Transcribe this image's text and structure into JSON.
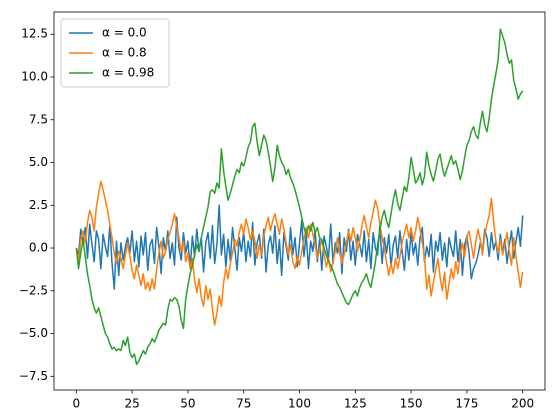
{
  "chart_data": {
    "type": "line",
    "x": [
      0,
      1,
      2,
      3,
      4,
      5,
      6,
      7,
      8,
      9,
      10,
      11,
      12,
      13,
      14,
      15,
      16,
      17,
      18,
      19,
      20,
      21,
      22,
      23,
      24,
      25,
      26,
      27,
      28,
      29,
      30,
      31,
      32,
      33,
      34,
      35,
      36,
      37,
      38,
      39,
      40,
      41,
      42,
      43,
      44,
      45,
      46,
      47,
      48,
      49,
      50,
      51,
      52,
      53,
      54,
      55,
      56,
      57,
      58,
      59,
      60,
      61,
      62,
      63,
      64,
      65,
      66,
      67,
      68,
      69,
      70,
      71,
      72,
      73,
      74,
      75,
      76,
      77,
      78,
      79,
      80,
      81,
      82,
      83,
      84,
      85,
      86,
      87,
      88,
      89,
      90,
      91,
      92,
      93,
      94,
      95,
      96,
      97,
      98,
      99,
      100,
      101,
      102,
      103,
      104,
      105,
      106,
      107,
      108,
      109,
      110,
      111,
      112,
      113,
      114,
      115,
      116,
      117,
      118,
      119,
      120,
      121,
      122,
      123,
      124,
      125,
      126,
      127,
      128,
      129,
      130,
      131,
      132,
      133,
      134,
      135,
      136,
      137,
      138,
      139,
      140,
      141,
      142,
      143,
      144,
      145,
      146,
      147,
      148,
      149,
      150,
      151,
      152,
      153,
      154,
      155,
      156,
      157,
      158,
      159,
      160,
      161,
      162,
      163,
      164,
      165,
      166,
      167,
      168,
      169,
      170,
      171,
      172,
      173,
      174,
      175,
      176,
      177,
      178,
      179,
      180,
      181,
      182,
      183,
      184,
      185,
      186,
      187,
      188,
      189,
      190,
      191,
      192,
      193,
      194,
      195,
      196,
      197,
      198,
      199,
      200
    ],
    "series": [
      {
        "name": "α = 0.0",
        "color": "#1f77b4",
        "values": [
          0,
          -0.4,
          1.1,
          0.3,
          1.2,
          -0.6,
          1.4,
          0.2,
          -0.8,
          1.0,
          0.5,
          -1.2,
          0.8,
          0.1,
          -0.5,
          1.3,
          -0.9,
          -2.4,
          0.4,
          -1.6,
          0.3,
          -0.7,
          0.1,
          0.6,
          -0.3,
          1.0,
          -0.8,
          0.4,
          -1.1,
          0.7,
          -0.4,
          0.9,
          -1.3,
          0.2,
          0.5,
          -0.9,
          1.2,
          0.1,
          -1.5,
          0.6,
          -0.2,
          1.0,
          -0.6,
          0.3,
          -1.0,
          1.8,
          0.0,
          -0.7,
          0.9,
          -0.3,
          0.4,
          -1.2,
          0.7,
          -0.5,
          1.1,
          -0.2,
          0.6,
          -1.4,
          0.3,
          0.9,
          -0.6,
          1.3,
          -0.9,
          0.2,
          2.5,
          -0.4,
          0.8,
          -1.1,
          0.5,
          -0.7,
          1.2,
          0.0,
          -1.3,
          0.6,
          -0.2,
          1.0,
          -0.8,
          0.4,
          -0.5,
          1.5,
          -1.0,
          0.3,
          0.8,
          -0.6,
          1.1,
          -1.4,
          0.2,
          0.7,
          -0.3,
          1.3,
          -0.9,
          0.5,
          -1.6,
          0.9,
          0.1,
          -0.7,
          1.2,
          -0.4,
          0.6,
          -1.1,
          0.3,
          1.6,
          -0.5,
          0.8,
          -1.2,
          0.4,
          -0.2,
          1.0,
          -0.8,
          0.5,
          -1.3,
          0.7,
          0.1,
          -0.6,
          1.4,
          -0.9,
          0.3,
          -0.3,
          0.9,
          -1.5,
          0.6,
          -0.2,
          1.1,
          -0.7,
          0.4,
          -1.0,
          0.8,
          0.2,
          -0.5,
          1.0,
          -0.8,
          0.5,
          -1.2,
          0.9,
          0.0,
          -0.4,
          1.3,
          -0.9,
          0.6,
          -0.3,
          0.8,
          -1.1,
          0.2,
          0.7,
          -0.6,
          1.0,
          -0.2,
          -1.3,
          0.5,
          -0.7,
          0.9,
          -0.4,
          0.3,
          -1.0,
          0.6,
          1.2,
          -0.8,
          0.1,
          -0.5,
          0.8,
          -1.4,
          0.4,
          -0.2,
          0.9,
          -0.7,
          0.3,
          -1.1,
          0.6,
          0.0,
          -0.5,
          1.0,
          -0.8,
          0.5,
          -1.6,
          0.2,
          0.7,
          -0.3,
          -1.8,
          -1.2,
          -0.9,
          -0.4,
          0.3,
          -0.2,
          1.1,
          0.6,
          -0.5,
          0.9,
          -0.1,
          0.4,
          -0.7,
          0.8,
          -0.3,
          0.5,
          -0.9,
          0.2,
          1.0,
          -0.6,
          0.4,
          1.2,
          0.1,
          1.9
        ]
      },
      {
        "name": "α = 0.8",
        "color": "#ff7f0e",
        "values": [
          0,
          -0.8,
          0.5,
          1.0,
          0.3,
          1.5,
          2.2,
          1.8,
          1.0,
          2.4,
          3.2,
          3.9,
          3.4,
          2.8,
          2.2,
          1.4,
          0.6,
          -0.3,
          -0.9,
          -0.2,
          -0.6,
          -1.2,
          -0.4,
          0.3,
          -0.5,
          -1.3,
          -1.8,
          -1.0,
          -1.6,
          -2.2,
          -1.5,
          -2.4,
          -2.0,
          -2.5,
          -1.8,
          -2.4,
          -1.2,
          -0.3,
          0.4,
          -0.6,
          -0.2,
          0.5,
          0.9,
          1.4,
          2.0,
          1.3,
          0.6,
          -0.2,
          0.4,
          -0.8,
          -0.3,
          -1.2,
          -0.6,
          -1.9,
          -2.6,
          -1.8,
          -2.9,
          -3.4,
          -2.2,
          -3.0,
          -2.4,
          -3.6,
          -4.5,
          -3.8,
          -2.8,
          -3.4,
          -2.0,
          -1.2,
          -1.8,
          -0.9,
          -0.3,
          0.5,
          0.1,
          0.9,
          1.4,
          0.8,
          1.7,
          1.2,
          0.5,
          1.0,
          0.4,
          -0.6,
          0.2,
          -0.4,
          0.7,
          1.3,
          1.8,
          1.0,
          1.6,
          2.0,
          1.4,
          0.8,
          1.7,
          1.1,
          0.3,
          -0.4,
          0.2,
          -0.8,
          -1.2,
          -0.5,
          -1.0,
          -0.2,
          0.5,
          1.2,
          0.6,
          1.4,
          0.8,
          0.2,
          -0.6,
          -0.1,
          0.5,
          -0.3,
          -1.1,
          -0.6,
          -1.4,
          -0.8,
          -0.2,
          0.6,
          -0.3,
          -0.9,
          -0.4,
          0.3,
          1.0,
          0.4,
          1.2,
          0.6,
          -0.2,
          0.5,
          1.3,
          1.9,
          1.2,
          0.6,
          1.5,
          2.1,
          2.8,
          2.3,
          1.4,
          0.6,
          0.0,
          -0.8,
          -1.6,
          -0.9,
          -1.5,
          -0.6,
          -1.2,
          -0.5,
          0.3,
          0.9,
          1.4,
          0.6,
          1.2,
          0.4,
          1.0,
          1.8,
          1.1,
          0.3,
          -0.5,
          -2.4,
          -1.6,
          -2.8,
          -2.0,
          -1.3,
          -0.6,
          -1.7,
          -2.5,
          -1.4,
          -3.0,
          -2.1,
          -1.2,
          -1.8,
          -0.8,
          -1.5,
          -0.4,
          0.3,
          -0.5,
          0.6,
          1.0,
          0.2,
          -0.6,
          0.4,
          1.1,
          0.5,
          -0.4,
          0.8,
          1.4,
          1.9,
          2.9,
          1.5,
          0.4,
          -0.3,
          0.5,
          -0.4,
          0.2,
          0.9,
          -0.2,
          -1.0,
          0.6,
          -0.5,
          -1.4,
          -2.3,
          -1.4
        ]
      },
      {
        "name": "α = 0.98",
        "color": "#2ca02c",
        "values": [
          0,
          -1.2,
          -0.3,
          0.5,
          -0.5,
          -1.5,
          -2.2,
          -3.0,
          -3.5,
          -3.8,
          -3.5,
          -4.0,
          -4.5,
          -5.0,
          -5.2,
          -5.6,
          -5.9,
          -5.8,
          -6.0,
          -5.9,
          -6.0,
          -5.4,
          -5.7,
          -5.2,
          -6.1,
          -6.4,
          -6.2,
          -6.8,
          -6.6,
          -6.3,
          -6.0,
          -6.2,
          -5.8,
          -5.6,
          -5.3,
          -5.5,
          -5.2,
          -4.8,
          -4.6,
          -4.4,
          -4.5,
          -3.6,
          -3.0,
          -3.1,
          -2.9,
          -3.0,
          -3.4,
          -4.2,
          -4.7,
          -3.0,
          -2.2,
          -1.5,
          -1.0,
          -0.4,
          0.2,
          -0.2,
          0.6,
          1.2,
          1.8,
          2.4,
          3.3,
          3.4,
          3.2,
          3.8,
          3.5,
          5.8,
          4.5,
          3.6,
          2.8,
          3.2,
          3.7,
          4.2,
          4.6,
          4.4,
          5.0,
          4.8,
          5.3,
          5.9,
          6.2,
          7.1,
          7.3,
          6.2,
          5.4,
          6.0,
          6.6,
          6.3,
          5.6,
          4.8,
          3.9,
          4.7,
          6.0,
          5.4,
          5.0,
          4.8,
          4.3,
          4.6,
          4.1,
          3.8,
          3.4,
          2.9,
          2.4,
          1.8,
          1.2,
          0.8,
          1.3,
          1.0,
          1.5,
          0.9,
          1.2,
          0.6,
          0.5,
          0.0,
          -0.4,
          -0.8,
          -1.0,
          -1.3,
          -1.7,
          -2.1,
          -2.3,
          -2.6,
          -2.9,
          -3.2,
          -3.3,
          -3.0,
          -2.7,
          -2.5,
          -2.8,
          -2.3,
          -2.0,
          -1.8,
          -1.5,
          -2.0,
          -2.3,
          -1.6,
          -0.8,
          0.2,
          1.0,
          1.8,
          2.2,
          1.6,
          1.2,
          2.0,
          2.8,
          3.4,
          2.6,
          2.2,
          2.9,
          3.6,
          3.3,
          4.1,
          5.3,
          4.6,
          3.8,
          4.0,
          4.4,
          3.7,
          4.2,
          5.6,
          4.8,
          4.3,
          3.9,
          4.5,
          5.2,
          5.5,
          4.7,
          4.2,
          4.6,
          5.0,
          5.4,
          4.9,
          5.1,
          4.6,
          4.0,
          4.5,
          5.3,
          6.0,
          6.3,
          6.8,
          7.1,
          6.6,
          6.4,
          7.3,
          8.0,
          7.2,
          6.8,
          7.6,
          8.7,
          9.5,
          10.2,
          11.0,
          12.8,
          12.4,
          12.0,
          11.3,
          10.8,
          11.0,
          9.8,
          9.3,
          8.7,
          9.0,
          9.2
        ]
      }
    ],
    "xlim": [
      -10,
      210
    ],
    "xticks": [
      0,
      25,
      50,
      75,
      100,
      125,
      150,
      175,
      200
    ],
    "ylim": [
      -8.3,
      13.8
    ],
    "yticks": [
      {
        "value": -7.5,
        "label": "−7.5"
      },
      {
        "value": -5,
        "label": "−5.0"
      },
      {
        "value": -2.5,
        "label": "−2.5"
      },
      {
        "value": 0,
        "label": "0.0"
      },
      2.5,
      {
        "value": 5,
        "label": "5.0"
      },
      7.5,
      {
        "value": 10,
        "label": "10.0"
      },
      12.5
    ],
    "grid": false,
    "legend": "upper left"
  }
}
